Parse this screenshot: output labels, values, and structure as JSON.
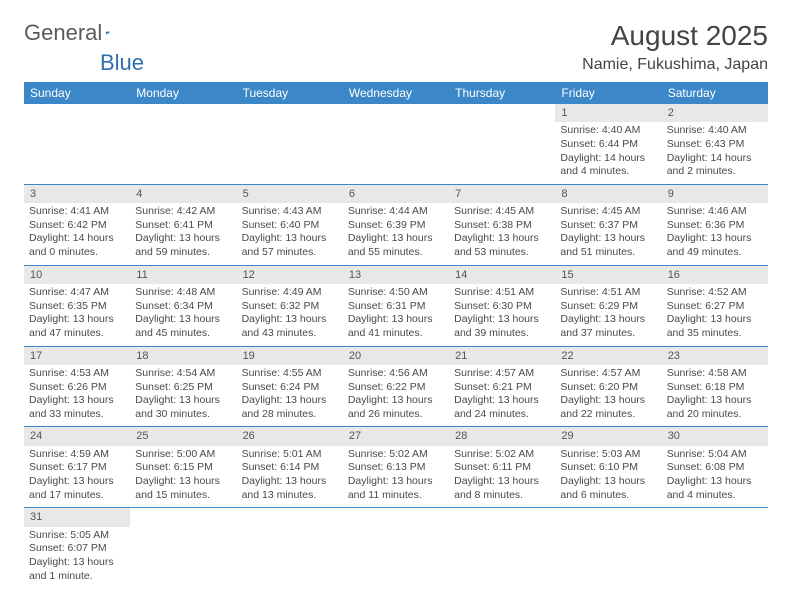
{
  "logo": {
    "word1": "General",
    "word2": "Blue"
  },
  "title": "August 2025",
  "location": "Namie, Fukushima, Japan",
  "colors": {
    "header_bg": "#3b87c8",
    "header_text": "#ffffff",
    "daynum_bg": "#e8e8e8",
    "border": "#3b87c8",
    "text": "#4a4a4a"
  },
  "weekdays": [
    "Sunday",
    "Monday",
    "Tuesday",
    "Wednesday",
    "Thursday",
    "Friday",
    "Saturday"
  ],
  "weeks": [
    [
      null,
      null,
      null,
      null,
      null,
      {
        "n": "1",
        "sr": "Sunrise: 4:40 AM",
        "ss": "Sunset: 6:44 PM",
        "dl": "Daylight: 14 hours and 4 minutes."
      },
      {
        "n": "2",
        "sr": "Sunrise: 4:40 AM",
        "ss": "Sunset: 6:43 PM",
        "dl": "Daylight: 14 hours and 2 minutes."
      }
    ],
    [
      {
        "n": "3",
        "sr": "Sunrise: 4:41 AM",
        "ss": "Sunset: 6:42 PM",
        "dl": "Daylight: 14 hours and 0 minutes."
      },
      {
        "n": "4",
        "sr": "Sunrise: 4:42 AM",
        "ss": "Sunset: 6:41 PM",
        "dl": "Daylight: 13 hours and 59 minutes."
      },
      {
        "n": "5",
        "sr": "Sunrise: 4:43 AM",
        "ss": "Sunset: 6:40 PM",
        "dl": "Daylight: 13 hours and 57 minutes."
      },
      {
        "n": "6",
        "sr": "Sunrise: 4:44 AM",
        "ss": "Sunset: 6:39 PM",
        "dl": "Daylight: 13 hours and 55 minutes."
      },
      {
        "n": "7",
        "sr": "Sunrise: 4:45 AM",
        "ss": "Sunset: 6:38 PM",
        "dl": "Daylight: 13 hours and 53 minutes."
      },
      {
        "n": "8",
        "sr": "Sunrise: 4:45 AM",
        "ss": "Sunset: 6:37 PM",
        "dl": "Daylight: 13 hours and 51 minutes."
      },
      {
        "n": "9",
        "sr": "Sunrise: 4:46 AM",
        "ss": "Sunset: 6:36 PM",
        "dl": "Daylight: 13 hours and 49 minutes."
      }
    ],
    [
      {
        "n": "10",
        "sr": "Sunrise: 4:47 AM",
        "ss": "Sunset: 6:35 PM",
        "dl": "Daylight: 13 hours and 47 minutes."
      },
      {
        "n": "11",
        "sr": "Sunrise: 4:48 AM",
        "ss": "Sunset: 6:34 PM",
        "dl": "Daylight: 13 hours and 45 minutes."
      },
      {
        "n": "12",
        "sr": "Sunrise: 4:49 AM",
        "ss": "Sunset: 6:32 PM",
        "dl": "Daylight: 13 hours and 43 minutes."
      },
      {
        "n": "13",
        "sr": "Sunrise: 4:50 AM",
        "ss": "Sunset: 6:31 PM",
        "dl": "Daylight: 13 hours and 41 minutes."
      },
      {
        "n": "14",
        "sr": "Sunrise: 4:51 AM",
        "ss": "Sunset: 6:30 PM",
        "dl": "Daylight: 13 hours and 39 minutes."
      },
      {
        "n": "15",
        "sr": "Sunrise: 4:51 AM",
        "ss": "Sunset: 6:29 PM",
        "dl": "Daylight: 13 hours and 37 minutes."
      },
      {
        "n": "16",
        "sr": "Sunrise: 4:52 AM",
        "ss": "Sunset: 6:27 PM",
        "dl": "Daylight: 13 hours and 35 minutes."
      }
    ],
    [
      {
        "n": "17",
        "sr": "Sunrise: 4:53 AM",
        "ss": "Sunset: 6:26 PM",
        "dl": "Daylight: 13 hours and 33 minutes."
      },
      {
        "n": "18",
        "sr": "Sunrise: 4:54 AM",
        "ss": "Sunset: 6:25 PM",
        "dl": "Daylight: 13 hours and 30 minutes."
      },
      {
        "n": "19",
        "sr": "Sunrise: 4:55 AM",
        "ss": "Sunset: 6:24 PM",
        "dl": "Daylight: 13 hours and 28 minutes."
      },
      {
        "n": "20",
        "sr": "Sunrise: 4:56 AM",
        "ss": "Sunset: 6:22 PM",
        "dl": "Daylight: 13 hours and 26 minutes."
      },
      {
        "n": "21",
        "sr": "Sunrise: 4:57 AM",
        "ss": "Sunset: 6:21 PM",
        "dl": "Daylight: 13 hours and 24 minutes."
      },
      {
        "n": "22",
        "sr": "Sunrise: 4:57 AM",
        "ss": "Sunset: 6:20 PM",
        "dl": "Daylight: 13 hours and 22 minutes."
      },
      {
        "n": "23",
        "sr": "Sunrise: 4:58 AM",
        "ss": "Sunset: 6:18 PM",
        "dl": "Daylight: 13 hours and 20 minutes."
      }
    ],
    [
      {
        "n": "24",
        "sr": "Sunrise: 4:59 AM",
        "ss": "Sunset: 6:17 PM",
        "dl": "Daylight: 13 hours and 17 minutes."
      },
      {
        "n": "25",
        "sr": "Sunrise: 5:00 AM",
        "ss": "Sunset: 6:15 PM",
        "dl": "Daylight: 13 hours and 15 minutes."
      },
      {
        "n": "26",
        "sr": "Sunrise: 5:01 AM",
        "ss": "Sunset: 6:14 PM",
        "dl": "Daylight: 13 hours and 13 minutes."
      },
      {
        "n": "27",
        "sr": "Sunrise: 5:02 AM",
        "ss": "Sunset: 6:13 PM",
        "dl": "Daylight: 13 hours and 11 minutes."
      },
      {
        "n": "28",
        "sr": "Sunrise: 5:02 AM",
        "ss": "Sunset: 6:11 PM",
        "dl": "Daylight: 13 hours and 8 minutes."
      },
      {
        "n": "29",
        "sr": "Sunrise: 5:03 AM",
        "ss": "Sunset: 6:10 PM",
        "dl": "Daylight: 13 hours and 6 minutes."
      },
      {
        "n": "30",
        "sr": "Sunrise: 5:04 AM",
        "ss": "Sunset: 6:08 PM",
        "dl": "Daylight: 13 hours and 4 minutes."
      }
    ],
    [
      {
        "n": "31",
        "sr": "Sunrise: 5:05 AM",
        "ss": "Sunset: 6:07 PM",
        "dl": "Daylight: 13 hours and 1 minute."
      },
      null,
      null,
      null,
      null,
      null,
      null
    ]
  ]
}
